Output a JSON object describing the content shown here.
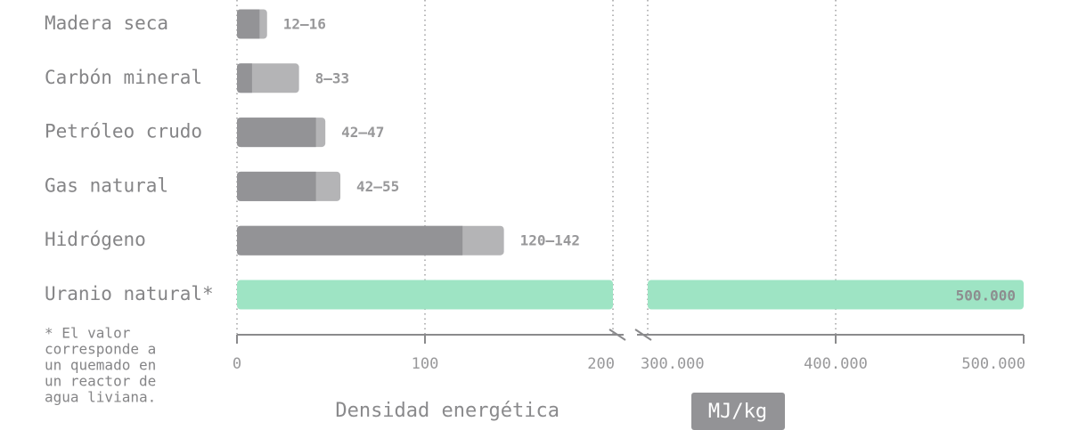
{
  "chart_data": {
    "type": "broken-range-bar",
    "categories": [
      "Madera seca",
      "Carbón mineral",
      "Petróleo crudo",
      "Gas natural",
      "Hidrógeno",
      "Uranio natural*"
    ],
    "low": [
      12,
      8,
      42,
      42,
      120,
      null
    ],
    "high": [
      16,
      33,
      47,
      55,
      142,
      500000
    ],
    "value_labels": [
      "12–16",
      "8–33",
      "42–47",
      "42–55",
      "120–142",
      "500.000"
    ],
    "colors": {
      "low": "#939396",
      "range": "#b4b4b6",
      "single": "#9ee4c4"
    },
    "xlim": [
      0,
      200
    ],
    "xticks": [
      0,
      100,
      200
    ],
    "x2lim": [
      300000,
      500000
    ],
    "x2ticks": [
      {
        "value": 300000,
        "label": "300.000"
      },
      {
        "value": 400000,
        "label": "400.000"
      },
      {
        "value": 500000,
        "label": "500.000"
      }
    ],
    "grid": true,
    "xlabel": "Densidad energética",
    "unit": "MJ/kg",
    "footnote": [
      "* El valor",
      "corresponde a",
      "un quemado en",
      "un reactor de",
      "agua liviana."
    ]
  }
}
